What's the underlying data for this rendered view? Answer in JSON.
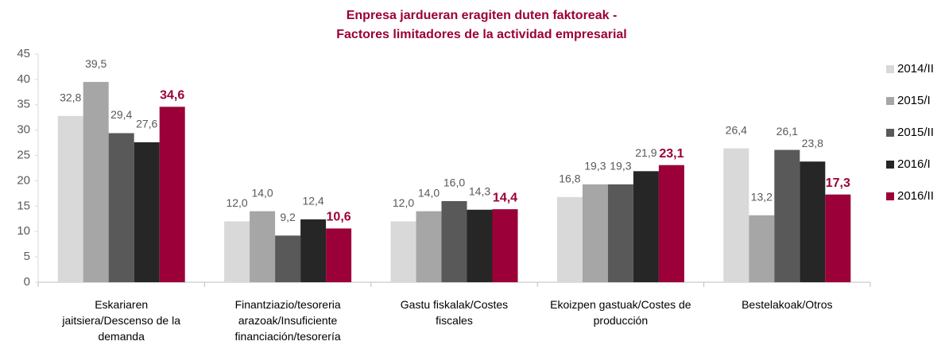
{
  "chart_data": {
    "type": "bar",
    "title": [
      "Enpresa jardueran eragiten duten faktoreak -",
      "Factores limitadores de la actividad empresarial"
    ],
    "categories": [
      "Eskariaren jaitsiera/Descenso de la demanda",
      "Finantziazio/tesoreria arazoak/Insuficiente financiación/tesorería",
      "Gastu fiskalak/Costes fiscales",
      "Ekoizpen gastuak/Costes de producción",
      "Bestelakoak/Otros"
    ],
    "series": [
      {
        "name": "2014/II",
        "color": "#d9d9d9",
        "values": [
          32.8,
          12.0,
          12.0,
          16.8,
          26.4
        ],
        "value_labels": [
          "32,8",
          "12,0",
          "12,0",
          "16,8",
          "26,4"
        ]
      },
      {
        "name": "2015/I",
        "color": "#a6a6a6",
        "values": [
          39.5,
          14.0,
          14.0,
          19.3,
          13.2
        ],
        "value_labels": [
          "39,5",
          "14,0",
          "14,0",
          "19,3",
          "13,2"
        ]
      },
      {
        "name": "2015/II",
        "color": "#595959",
        "values": [
          29.4,
          9.2,
          16.0,
          19.3,
          26.1
        ],
        "value_labels": [
          "29,4",
          "9,2",
          "16,0",
          "19,3",
          "26,1"
        ]
      },
      {
        "name": "2016/I",
        "color": "#262626",
        "values": [
          27.6,
          12.4,
          14.3,
          21.9,
          23.8
        ],
        "value_labels": [
          "27,6",
          "12,4",
          "14,3",
          "21,9",
          "23,8"
        ]
      },
      {
        "name": "2016/II",
        "color": "#9b0038",
        "values": [
          34.6,
          10.6,
          14.4,
          23.1,
          17.3
        ],
        "value_labels": [
          "34,6",
          "10,6",
          "14,4",
          "23,1",
          "17,3"
        ]
      }
    ],
    "ylim": [
      0,
      45
    ],
    "yticks": [
      0,
      5,
      10,
      15,
      20,
      25,
      30,
      35,
      40,
      45
    ],
    "grid": false,
    "legend": "right"
  }
}
